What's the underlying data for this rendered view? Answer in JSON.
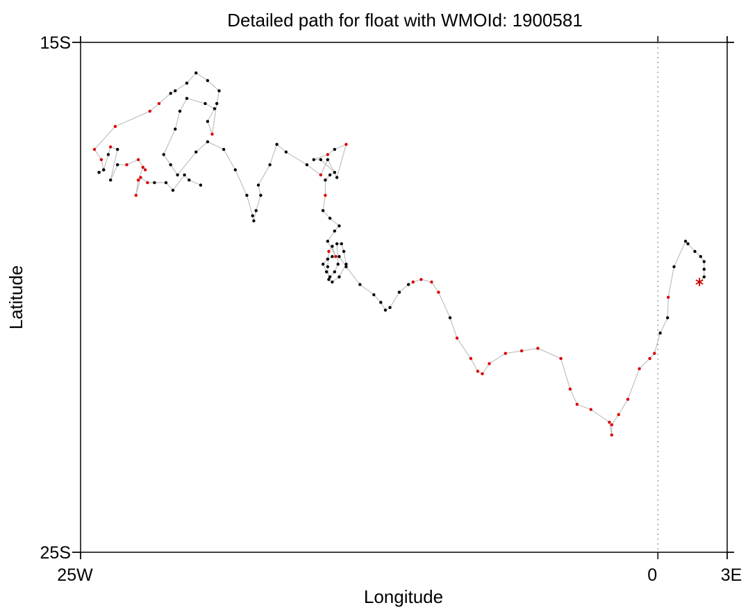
{
  "chart_data": {
    "type": "scatter",
    "title": "Detailed path for float with WMOId: 1900581",
    "xlabel": "Longitude",
    "ylabel": "Latitude",
    "xlim": [
      -25,
      3
    ],
    "ylim": [
      -25,
      -15
    ],
    "x_ticks": [
      {
        "value": -25,
        "label": "25W"
      },
      {
        "value": 0,
        "label": "0"
      },
      {
        "value": 3,
        "label": "3E"
      }
    ],
    "y_ticks": [
      {
        "value": -15,
        "label": "15S"
      },
      {
        "value": -25,
        "label": "25S"
      }
    ],
    "reference_line": {
      "x": 0,
      "style": "dotted"
    },
    "colors": {
      "path_line": "#c0c0c0",
      "black_points": "#000000",
      "red_points": "#dd0000",
      "start_marker": "#cc0000"
    },
    "start_marker": {
      "lon": 1.8,
      "lat": -19.7,
      "symbol": "asterisk"
    },
    "path": [
      [
        1.8,
        -19.7
      ],
      [
        2.0,
        -19.6
      ],
      [
        2.0,
        -19.45
      ],
      [
        2.0,
        -19.3
      ],
      [
        1.85,
        -19.2
      ],
      [
        1.6,
        -19.1
      ],
      [
        1.3,
        -18.95
      ],
      [
        1.2,
        -18.9
      ],
      [
        0.7,
        -19.4
      ],
      [
        0.45,
        -20.0
      ],
      [
        0.42,
        -20.4
      ],
      [
        0.1,
        -20.7
      ],
      [
        -0.15,
        -21.1
      ],
      [
        -0.35,
        -21.2
      ],
      [
        -0.8,
        -21.4
      ],
      [
        -1.3,
        -22.0
      ],
      [
        -1.7,
        -22.3
      ],
      [
        -2.0,
        -22.5
      ],
      [
        -2.0,
        -22.7
      ],
      [
        -2.1,
        -22.45
      ],
      [
        -2.9,
        -22.2
      ],
      [
        -3.5,
        -22.1
      ],
      [
        -3.8,
        -21.8
      ],
      [
        -4.2,
        -21.2
      ],
      [
        -5.2,
        -21.0
      ],
      [
        -5.9,
        -21.05
      ],
      [
        -6.6,
        -21.1
      ],
      [
        -7.3,
        -21.3
      ],
      [
        -7.6,
        -21.5
      ],
      [
        -7.8,
        -21.45
      ],
      [
        -8.1,
        -21.2
      ],
      [
        -8.7,
        -20.8
      ],
      [
        -9.0,
        -20.4
      ],
      [
        -9.5,
        -19.9
      ],
      [
        -9.8,
        -19.7
      ],
      [
        -10.25,
        -19.65
      ],
      [
        -10.6,
        -19.7
      ],
      [
        -10.8,
        -19.75
      ],
      [
        -11.2,
        -19.9
      ],
      [
        -11.6,
        -20.2
      ],
      [
        -11.8,
        -20.25
      ],
      [
        -12.0,
        -20.1
      ],
      [
        -12.3,
        -19.95
      ],
      [
        -12.9,
        -19.75
      ],
      [
        -13.5,
        -19.4
      ],
      [
        -13.8,
        -19.2
      ],
      [
        -14.1,
        -19.2
      ],
      [
        -14.3,
        -19.25
      ],
      [
        -14.5,
        -19.35
      ],
      [
        -14.35,
        -19.5
      ],
      [
        -14.2,
        -19.6
      ],
      [
        -14.0,
        -19.5
      ],
      [
        -13.85,
        -19.35
      ],
      [
        -13.9,
        -18.95
      ],
      [
        -13.7,
        -18.95
      ],
      [
        -13.6,
        -19.1
      ],
      [
        -13.5,
        -19.35
      ],
      [
        -13.8,
        -19.6
      ],
      [
        -14.1,
        -19.7
      ],
      [
        -14.25,
        -19.65
      ],
      [
        -14.3,
        -19.4
      ],
      [
        -14.25,
        -19.1
      ],
      [
        -14.1,
        -19.0
      ],
      [
        -13.95,
        -19.2
      ],
      [
        -14.3,
        -18.9
      ],
      [
        -14.0,
        -18.7
      ],
      [
        -13.8,
        -18.6
      ],
      [
        -14.2,
        -18.45
      ],
      [
        -14.5,
        -18.3
      ],
      [
        -14.4,
        -18.0
      ],
      [
        -14.4,
        -17.7
      ],
      [
        -14.2,
        -17.6
      ],
      [
        -14.0,
        -17.55
      ],
      [
        -14.6,
        -17.3
      ],
      [
        -14.9,
        -17.3
      ],
      [
        -14.3,
        -17.2
      ],
      [
        -14.0,
        -17.1
      ],
      [
        -13.5,
        -17.0
      ],
      [
        -13.9,
        -17.65
      ],
      [
        -14.3,
        -17.3
      ],
      [
        -14.6,
        -17.6
      ],
      [
        -15.2,
        -17.4
      ],
      [
        -16.1,
        -17.15
      ],
      [
        -16.5,
        -17.0
      ],
      [
        -16.8,
        -17.4
      ],
      [
        -17.3,
        -17.8
      ],
      [
        -17.2,
        -18.0
      ],
      [
        -17.4,
        -18.3
      ],
      [
        -17.5,
        -18.5
      ],
      [
        -17.55,
        -18.4
      ],
      [
        -17.8,
        -18.0
      ],
      [
        -18.3,
        -17.5
      ],
      [
        -18.8,
        -17.1
      ],
      [
        -19.5,
        -16.95
      ],
      [
        -20.0,
        -17.15
      ],
      [
        -20.8,
        -17.6
      ],
      [
        -21.1,
        -17.4
      ],
      [
        -21.4,
        -17.2
      ],
      [
        -20.9,
        -16.7
      ],
      [
        -20.7,
        -16.35
      ],
      [
        -20.4,
        -16.1
      ],
      [
        -19.6,
        -16.2
      ],
      [
        -19.2,
        -16.3
      ],
      [
        -19.5,
        -16.55
      ],
      [
        -19.3,
        -16.8
      ],
      [
        -19.1,
        -16.2
      ],
      [
        -19.0,
        -15.95
      ],
      [
        -19.5,
        -15.75
      ],
      [
        -20.0,
        -15.6
      ],
      [
        -20.4,
        -15.8
      ],
      [
        -20.9,
        -15.95
      ],
      [
        -21.1,
        -16.0
      ],
      [
        -21.6,
        -16.2
      ],
      [
        -22.0,
        -16.35
      ],
      [
        -23.5,
        -16.65
      ],
      [
        -24.4,
        -17.1
      ],
      [
        -24.1,
        -17.3
      ],
      [
        -24.0,
        -17.5
      ],
      [
        -24.2,
        -17.55
      ],
      [
        -24.0,
        -17.5
      ],
      [
        -23.8,
        -17.2
      ],
      [
        -23.7,
        -17.05
      ],
      [
        -23.4,
        -17.1
      ],
      [
        -23.7,
        -17.7
      ],
      [
        -23.4,
        -17.4
      ],
      [
        -23.0,
        -17.4
      ],
      [
        -22.5,
        -17.3
      ],
      [
        -22.2,
        -17.5
      ],
      [
        -22.3,
        -17.45
      ],
      [
        -22.5,
        -17.7
      ],
      [
        -22.6,
        -18.0
      ],
      [
        -22.4,
        -17.65
      ],
      [
        -22.1,
        -17.75
      ],
      [
        -21.8,
        -17.75
      ],
      [
        -21.3,
        -17.75
      ],
      [
        -21.0,
        -17.9
      ],
      [
        -20.5,
        -17.6
      ],
      [
        -20.3,
        -17.7
      ],
      [
        -19.8,
        -17.8
      ]
    ],
    "red_point_indices": [
      0,
      9,
      12,
      13,
      14,
      15,
      16,
      17,
      18,
      19,
      20,
      21,
      22,
      23,
      24,
      25,
      26,
      27,
      28,
      29,
      30,
      31,
      33,
      34,
      35,
      36,
      61,
      63,
      69,
      75,
      77,
      80,
      104,
      112,
      113,
      114,
      115,
      116,
      121,
      125,
      126,
      127,
      128,
      129,
      130,
      131,
      132
    ]
  }
}
